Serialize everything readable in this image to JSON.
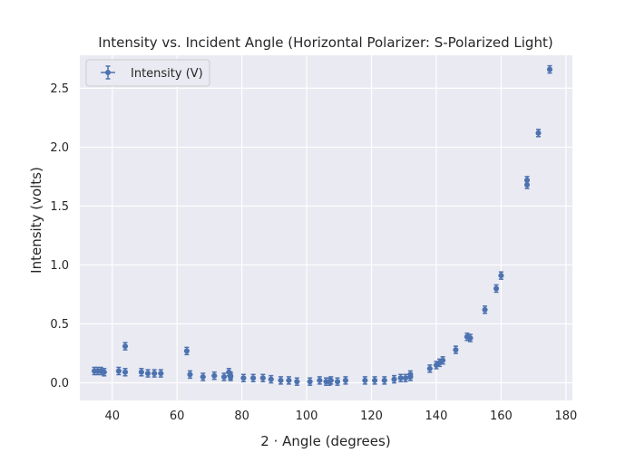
{
  "chart_data": {
    "type": "scatter",
    "title": "Intensity vs. Incident Angle (Horizontal Polarizer: S-Polarized Light)",
    "xlabel": "2 · Angle (degrees)",
    "ylabel": "Intensity (volts)",
    "xlim": [
      30,
      182
    ],
    "ylim": [
      -0.15,
      2.78
    ],
    "xticks": [
      40,
      60,
      80,
      100,
      120,
      140,
      160,
      180
    ],
    "yticks": [
      0.0,
      0.5,
      1.0,
      1.5,
      2.0,
      2.5
    ],
    "ytick_labels": [
      "0.0",
      "0.5",
      "1.0",
      "1.5",
      "2.0",
      "2.5"
    ],
    "grid": true,
    "legend_position": "top-left",
    "colors": {
      "background": "#eaeaf2",
      "grid": "#ffffff",
      "marker": "#4c72b0",
      "text": "#262626"
    },
    "series": [
      {
        "name": "Intensity (V)",
        "x": [
          34.5,
          35.5,
          36.5,
          37.5,
          42,
          44,
          44,
          49,
          51,
          53,
          55,
          63,
          64,
          68,
          71.5,
          74.5,
          76,
          76.5,
          76.5,
          80.5,
          83.5,
          86.5,
          89,
          92,
          94.5,
          97,
          101,
          104,
          106,
          107,
          107.5,
          109.5,
          112,
          118,
          121,
          124,
          127,
          129,
          130.5,
          132,
          132,
          138,
          140,
          141,
          142,
          146,
          149.5,
          150.5,
          155,
          158.5,
          160,
          168,
          168,
          171.5,
          175
        ],
        "y": [
          0.1,
          0.1,
          0.1,
          0.09,
          0.1,
          0.09,
          0.31,
          0.09,
          0.08,
          0.08,
          0.08,
          0.27,
          0.07,
          0.05,
          0.06,
          0.05,
          0.09,
          0.06,
          0.05,
          0.04,
          0.04,
          0.04,
          0.03,
          0.02,
          0.02,
          0.01,
          0.01,
          0.02,
          0.01,
          0.01,
          0.02,
          0.01,
          0.02,
          0.02,
          0.02,
          0.02,
          0.03,
          0.04,
          0.04,
          0.05,
          0.07,
          0.12,
          0.15,
          0.17,
          0.19,
          0.28,
          0.39,
          0.38,
          0.62,
          0.8,
          0.91,
          1.72,
          1.68,
          2.12,
          2.66
        ],
        "yerr": 0.025,
        "xerr": 0.5
      }
    ]
  }
}
